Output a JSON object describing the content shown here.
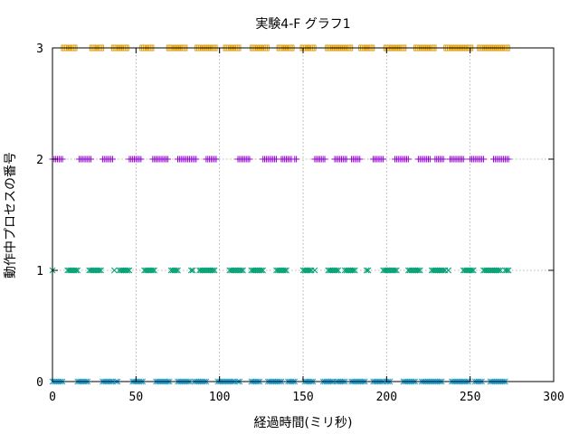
{
  "chart_data": {
    "type": "scatter",
    "title": "実験4-F グラフ1",
    "xlabel": "経過時間(ミリ秒)",
    "ylabel": "動作中プロセスの番号",
    "xlim": [
      0,
      300
    ],
    "ylim": [
      0,
      3
    ],
    "xticks": [
      "0",
      "50",
      "100",
      "150",
      "200",
      "250",
      "300"
    ],
    "yticks": [
      "0",
      "1",
      "2",
      "3"
    ],
    "grid": true,
    "legend": "none",
    "series": [
      {
        "process": 0,
        "marker": "x",
        "color": "#1f9fd0",
        "x": [
          0,
          1,
          2,
          3,
          4,
          5,
          6,
          15,
          16,
          17,
          18,
          19,
          20,
          21,
          30,
          31,
          32,
          33,
          34,
          35,
          36,
          38,
          39,
          48,
          49,
          50,
          51,
          52,
          53,
          54,
          62,
          63,
          64,
          65,
          66,
          67,
          68,
          69,
          70,
          75,
          76,
          77,
          78,
          79,
          80,
          81,
          82,
          85,
          86,
          87,
          88,
          89,
          90,
          91,
          92,
          99,
          100,
          101,
          102,
          103,
          104,
          105,
          106,
          107,
          108,
          109,
          111,
          112,
          119,
          120,
          121,
          122,
          123,
          124,
          129,
          130,
          131,
          132,
          133,
          134,
          135,
          136,
          137,
          141,
          142,
          143,
          144,
          145,
          151,
          152,
          153,
          154,
          155,
          156,
          162,
          163,
          164,
          165,
          166,
          167,
          168,
          170,
          171,
          172,
          173,
          174,
          175,
          179,
          180,
          181,
          182,
          183,
          184,
          185,
          186,
          187,
          192,
          193,
          194,
          195,
          196,
          197,
          198,
          200,
          201,
          202,
          210,
          211,
          212,
          213,
          214,
          215,
          216,
          217,
          221,
          222,
          223,
          224,
          225,
          226,
          227,
          228,
          229,
          230,
          231,
          232,
          233,
          239,
          240,
          241,
          242,
          243,
          244,
          245,
          246,
          247,
          248,
          249,
          253,
          254,
          255,
          256,
          257,
          262,
          263,
          264,
          265,
          266,
          267,
          268,
          269,
          270,
          271
        ],
        "y": 0
      },
      {
        "process": 1,
        "marker": "x",
        "color": "#009e73",
        "x": [
          0,
          9,
          10,
          11,
          12,
          13,
          14,
          15,
          22,
          23,
          24,
          25,
          26,
          27,
          28,
          29,
          37,
          40,
          41,
          42,
          43,
          44,
          45,
          46,
          55,
          56,
          57,
          58,
          59,
          60,
          61,
          71,
          72,
          73,
          74,
          75,
          83,
          84,
          88,
          89,
          90,
          91,
          92,
          93,
          94,
          95,
          96,
          97,
          106,
          107,
          108,
          109,
          110,
          111,
          112,
          113,
          114,
          119,
          120,
          121,
          122,
          123,
          124,
          125,
          126,
          134,
          135,
          136,
          137,
          138,
          139,
          140,
          150,
          151,
          152,
          153,
          154,
          155,
          157,
          165,
          166,
          167,
          168,
          169,
          170,
          171,
          175,
          176,
          177,
          178,
          179,
          180,
          181,
          188,
          189,
          198,
          199,
          200,
          201,
          202,
          203,
          204,
          205,
          206,
          213,
          214,
          215,
          216,
          217,
          218,
          219,
          220,
          227,
          228,
          229,
          230,
          231,
          232,
          233,
          234,
          235,
          237,
          246,
          247,
          248,
          249,
          250,
          251,
          252,
          258,
          259,
          260,
          261,
          262,
          263,
          264,
          265,
          266,
          267,
          268,
          271,
          272,
          273
        ],
        "y": 1
      },
      {
        "process": 2,
        "marker": "+",
        "color": "#9400d3",
        "x": [
          0,
          1,
          2,
          3,
          4,
          5,
          6,
          16,
          17,
          18,
          19,
          20,
          21,
          22,
          23,
          30,
          31,
          32,
          33,
          34,
          35,
          36,
          46,
          47,
          48,
          49,
          50,
          51,
          52,
          53,
          60,
          61,
          62,
          63,
          64,
          65,
          66,
          67,
          68,
          69,
          75,
          76,
          77,
          78,
          79,
          80,
          81,
          82,
          83,
          84,
          85,
          86,
          92,
          93,
          94,
          95,
          96,
          97,
          98,
          111,
          112,
          113,
          114,
          115,
          116,
          117,
          118,
          126,
          127,
          128,
          129,
          130,
          131,
          132,
          133,
          134,
          137,
          138,
          139,
          140,
          141,
          142,
          143,
          145,
          146,
          157,
          158,
          159,
          160,
          161,
          162,
          163,
          169,
          170,
          171,
          172,
          173,
          174,
          175,
          176,
          179,
          180,
          181,
          182,
          183,
          184,
          192,
          193,
          194,
          195,
          196,
          197,
          198,
          205,
          206,
          207,
          208,
          209,
          210,
          211,
          212,
          213,
          219,
          220,
          221,
          222,
          223,
          224,
          225,
          226,
          229,
          230,
          231,
          232,
          233,
          234,
          238,
          239,
          240,
          241,
          242,
          243,
          244,
          245,
          246,
          250,
          251,
          252,
          253,
          254,
          255,
          256,
          257,
          258,
          264,
          265,
          266,
          267,
          268,
          269,
          270,
          271,
          272,
          273
        ],
        "y": 2
      },
      {
        "process": 3,
        "marker": "square",
        "color": "#e69f00",
        "x": [
          7,
          8,
          9,
          10,
          11,
          12,
          13,
          24,
          25,
          26,
          27,
          28,
          29,
          37,
          38,
          39,
          40,
          41,
          42,
          43,
          44,
          54,
          55,
          56,
          57,
          58,
          59,
          70,
          71,
          72,
          73,
          74,
          75,
          76,
          77,
          78,
          79,
          87,
          88,
          89,
          90,
          91,
          92,
          93,
          94,
          95,
          96,
          97,
          104,
          105,
          106,
          107,
          108,
          109,
          110,
          111,
          120,
          121,
          122,
          123,
          124,
          125,
          126,
          127,
          128,
          136,
          137,
          138,
          139,
          140,
          141,
          142,
          143,
          150,
          151,
          152,
          153,
          154,
          155,
          156,
          165,
          166,
          167,
          168,
          169,
          170,
          171,
          172,
          173,
          174,
          175,
          176,
          177,
          178,
          185,
          186,
          187,
          188,
          189,
          190,
          191,
          200,
          201,
          202,
          203,
          204,
          205,
          206,
          207,
          208,
          209,
          210,
          218,
          219,
          220,
          221,
          222,
          223,
          224,
          225,
          226,
          227,
          228,
          236,
          237,
          238,
          239,
          240,
          241,
          242,
          243,
          244,
          245,
          246,
          247,
          248,
          249,
          250,
          256,
          257,
          258,
          259,
          260,
          261,
          262,
          263,
          264,
          265,
          266,
          267,
          268,
          269,
          270,
          271,
          272
        ],
        "y": 3
      }
    ]
  }
}
